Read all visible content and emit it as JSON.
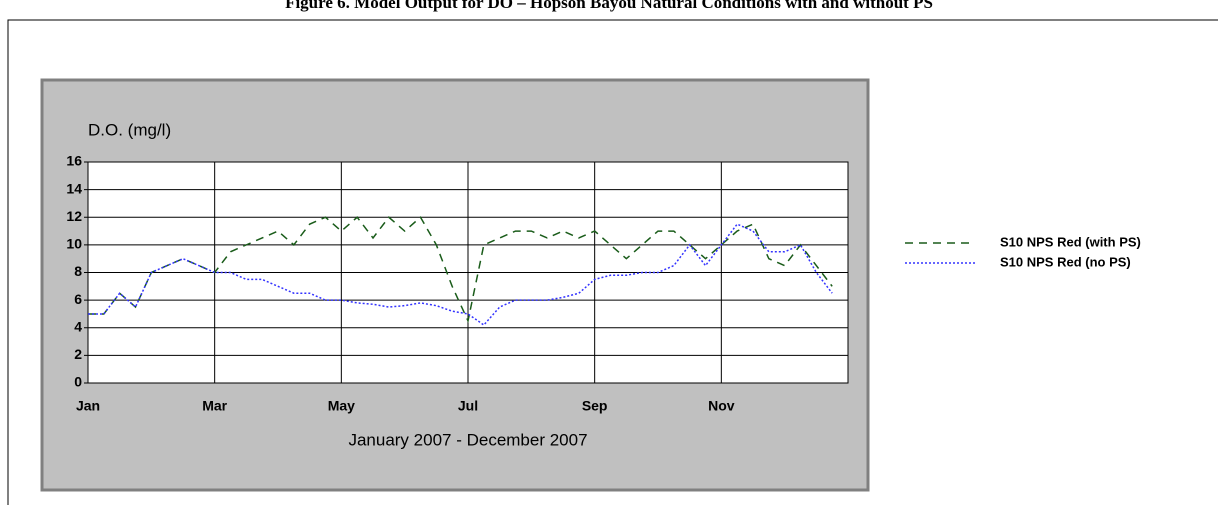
{
  "chart_data": {
    "type": "line",
    "title": "Figure 6. Model Output for DO – Hopson Bayou Natural Conditions with and without PS",
    "y_label": "D.O. (mg/l)",
    "x_label": "January 2007 - December 2007",
    "categories": [
      "Jan",
      null,
      null,
      null,
      null,
      null,
      null,
      null,
      "Mar",
      null,
      null,
      null,
      null,
      null,
      null,
      null,
      "May",
      null,
      null,
      null,
      null,
      null,
      null,
      null,
      "Jul",
      null,
      null,
      null,
      null,
      null,
      null,
      null,
      "Sep",
      null,
      null,
      null,
      null,
      null,
      null,
      null,
      "Nov",
      null,
      null,
      null,
      null,
      null,
      null,
      null
    ],
    "series": [
      {
        "name": "S10 NPS Red (with PS)",
        "color": "#1a5c1a",
        "dash": "8,6",
        "values": [
          5,
          5,
          6.5,
          5.5,
          8,
          8.5,
          9,
          8.5,
          8,
          9.5,
          10,
          10.5,
          11,
          10,
          11.5,
          12,
          11,
          12,
          10.5,
          12,
          11,
          12,
          10,
          7,
          4.5,
          10,
          10.5,
          11,
          11,
          10.5,
          11,
          10.5,
          11,
          10,
          9,
          10,
          11,
          11,
          10,
          9,
          10,
          11,
          11.5,
          9,
          8.5,
          10,
          8.5,
          7
        ]
      },
      {
        "name": "S10 NPS Red (no PS)",
        "color": "#3333ff",
        "dash": "2,2",
        "values": [
          5,
          5,
          6.5,
          5.5,
          8,
          8.5,
          9,
          8.5,
          8,
          8,
          7.5,
          7.5,
          7,
          6.5,
          6.5,
          6,
          6,
          5.8,
          5.7,
          5.5,
          5.6,
          5.8,
          5.6,
          5.2,
          5,
          4.2,
          5.5,
          6,
          6,
          6,
          6.2,
          6.5,
          7.5,
          7.8,
          7.8,
          8,
          8,
          8.5,
          10,
          8.5,
          10,
          11.5,
          11,
          9.5,
          9.5,
          10,
          8,
          6.5
        ]
      }
    ],
    "ylim": [
      0,
      16
    ],
    "yticks": [
      0,
      2,
      4,
      6,
      8,
      10,
      12,
      14,
      16
    ],
    "grid": true
  }
}
